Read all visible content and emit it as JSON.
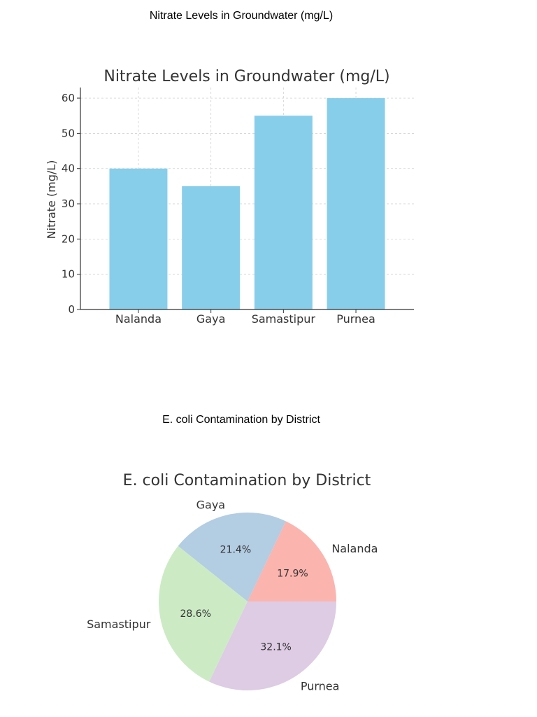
{
  "captions": {
    "bar": "Nitrate Levels in Groundwater (mg/L)",
    "pie": "E. coli Contamination by District"
  },
  "chart_data": [
    {
      "type": "bar",
      "title": "Nitrate Levels in Groundwater (mg/L)",
      "xlabel": "",
      "ylabel": "Nitrate (mg/L)",
      "categories": [
        "Nalanda",
        "Gaya",
        "Samastipur",
        "Purnea"
      ],
      "values": [
        40,
        35,
        55,
        60
      ],
      "ylim": [
        0,
        63
      ],
      "yticks": [
        0,
        10,
        20,
        30,
        40,
        50,
        60
      ],
      "grid": true,
      "color": "#87ceeb"
    },
    {
      "type": "pie",
      "title": "E. coli Contamination by District",
      "labels": [
        "Nalanda",
        "Gaya",
        "Samastipur",
        "Purnea"
      ],
      "values": [
        17.9,
        21.4,
        28.6,
        32.1
      ],
      "percent_labels": [
        "17.9%",
        "21.4%",
        "28.6%",
        "32.1%"
      ],
      "colors": [
        "#fbb4ae",
        "#b3cde3",
        "#ccebc5",
        "#decbe4"
      ]
    }
  ]
}
